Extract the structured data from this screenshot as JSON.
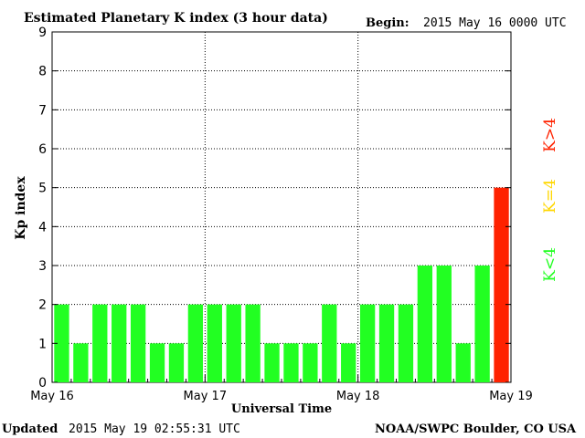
{
  "header": {
    "title": "Estimated Planetary K index (3 hour data)",
    "begin_label": "Begin:",
    "begin_value": "2015 May 16 0000 UTC"
  },
  "footer": {
    "updated_label": "Updated",
    "updated_value": "2015 May 19 02:55:31 UTC",
    "source": "NOAA/SWPC Boulder, CO USA"
  },
  "legend": {
    "low": "K<4",
    "mid": "K=4",
    "high": "K>4"
  },
  "colors": {
    "low": "#22ff22",
    "mid": "#ffd700",
    "high": "#ff2200",
    "grid": "#000000",
    "axis": "#000000",
    "background": "#ffffff"
  },
  "chart_data": {
    "type": "bar",
    "title": "Estimated Planetary K index (3 hour data)",
    "xlabel": "Universal Time",
    "ylabel": "Kp index",
    "ylim": [
      0,
      9
    ],
    "yticks": [
      "0",
      "1",
      "2",
      "3",
      "4",
      "5",
      "6",
      "7",
      "8",
      "9"
    ],
    "day_labels": [
      "May 16",
      "May 17",
      "May 18",
      "May 19"
    ],
    "grid": true,
    "values": [
      2,
      1,
      2,
      2,
      2,
      1,
      1,
      2,
      2,
      2,
      2,
      1,
      1,
      1,
      2,
      1,
      2,
      2,
      2,
      3,
      3,
      1,
      3,
      5
    ]
  }
}
